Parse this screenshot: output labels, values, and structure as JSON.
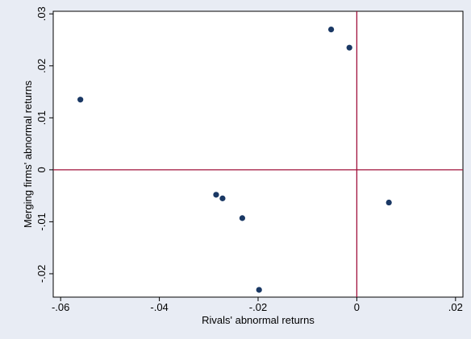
{
  "chart_data": {
    "type": "scatter",
    "title": "",
    "xlabel": "Rivals' abnormal returns",
    "ylabel": "Merging firms' abnormal returns",
    "xlim": [
      -0.0615,
      0.0215
    ],
    "ylim": [
      -0.0245,
      0.0305
    ],
    "x_ticks": [
      -0.06,
      -0.04,
      -0.02,
      0,
      0.02
    ],
    "x_tick_labels": [
      "-.06",
      "-.04",
      "-.02",
      "0",
      ".02"
    ],
    "y_ticks": [
      -0.02,
      -0.01,
      0,
      0.01,
      0.02,
      0.03
    ],
    "y_tick_labels": [
      "-.02",
      "-.01",
      "0",
      ".01",
      ".02",
      ".03"
    ],
    "reference_lines": {
      "x": 0,
      "y": 0,
      "color": "#a0103a"
    },
    "marker_color": "#1a3864",
    "grid": false,
    "points": [
      {
        "x": -0.056,
        "y": 0.0135
      },
      {
        "x": -0.0052,
        "y": 0.027
      },
      {
        "x": -0.0015,
        "y": 0.0235
      },
      {
        "x": -0.0285,
        "y": -0.0048
      },
      {
        "x": -0.0272,
        "y": -0.0055
      },
      {
        "x": -0.0232,
        "y": -0.0093
      },
      {
        "x": -0.0198,
        "y": -0.0231
      },
      {
        "x": 0.0065,
        "y": -0.0063
      }
    ]
  }
}
